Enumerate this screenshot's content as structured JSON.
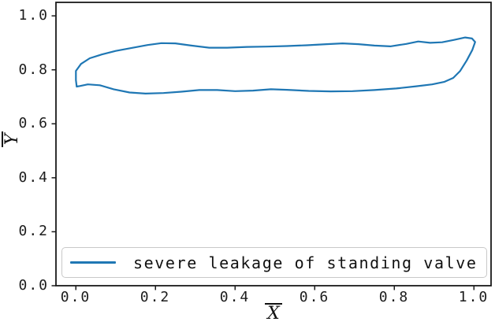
{
  "figure": {
    "background": "#ffffff"
  },
  "chart_data": {
    "type": "line",
    "title": "",
    "xlabel": "X",
    "ylabel": "Y",
    "axis_labels_overlined": true,
    "grid": false,
    "xlim": [
      -0.05,
      1.043
    ],
    "ylim": [
      0.0,
      1.05
    ],
    "x_tick_values": [
      0.0,
      0.2,
      0.4,
      0.6,
      0.8,
      1.0
    ],
    "x_tick_labels": [
      "0.0",
      "0.2",
      "0.4",
      "0.6",
      "0.8",
      "1.0"
    ],
    "y_tick_values": [
      0.0,
      0.2,
      0.4,
      0.6,
      0.8,
      1.0
    ],
    "y_tick_labels": [
      "0.0",
      "0.2",
      "0.4",
      "0.6",
      "0.8",
      "1.0"
    ],
    "legend": {
      "position": "lower center",
      "entries": [
        {
          "label": "severe leakage of standing valve",
          "color": "#1f77b4",
          "line_style": "solid"
        }
      ]
    },
    "series": [
      {
        "name": "severe leakage of standing valve",
        "color": "#1f77b4",
        "closed_loop": true,
        "points": [
          [
            0.002,
            0.738
          ],
          [
            0.0,
            0.762
          ],
          [
            0.0,
            0.796
          ],
          [
            0.013,
            0.822
          ],
          [
            0.035,
            0.843
          ],
          [
            0.065,
            0.857
          ],
          [
            0.1,
            0.87
          ],
          [
            0.14,
            0.881
          ],
          [
            0.18,
            0.892
          ],
          [
            0.215,
            0.899
          ],
          [
            0.25,
            0.898
          ],
          [
            0.29,
            0.89
          ],
          [
            0.335,
            0.882
          ],
          [
            0.38,
            0.882
          ],
          [
            0.43,
            0.885
          ],
          [
            0.48,
            0.886
          ],
          [
            0.53,
            0.888
          ],
          [
            0.58,
            0.891
          ],
          [
            0.63,
            0.895
          ],
          [
            0.67,
            0.898
          ],
          [
            0.71,
            0.895
          ],
          [
            0.75,
            0.89
          ],
          [
            0.79,
            0.887
          ],
          [
            0.83,
            0.896
          ],
          [
            0.86,
            0.905
          ],
          [
            0.89,
            0.9
          ],
          [
            0.92,
            0.902
          ],
          [
            0.95,
            0.911
          ],
          [
            0.978,
            0.92
          ],
          [
            0.995,
            0.916
          ],
          [
            1.003,
            0.903
          ],
          [
            0.996,
            0.874
          ],
          [
            0.982,
            0.835
          ],
          [
            0.965,
            0.795
          ],
          [
            0.948,
            0.77
          ],
          [
            0.925,
            0.755
          ],
          [
            0.895,
            0.746
          ],
          [
            0.855,
            0.739
          ],
          [
            0.805,
            0.731
          ],
          [
            0.75,
            0.725
          ],
          [
            0.695,
            0.721
          ],
          [
            0.64,
            0.72
          ],
          [
            0.585,
            0.722
          ],
          [
            0.53,
            0.726
          ],
          [
            0.49,
            0.728
          ],
          [
            0.445,
            0.723
          ],
          [
            0.4,
            0.721
          ],
          [
            0.355,
            0.725
          ],
          [
            0.31,
            0.725
          ],
          [
            0.265,
            0.719
          ],
          [
            0.22,
            0.714
          ],
          [
            0.175,
            0.712
          ],
          [
            0.135,
            0.716
          ],
          [
            0.095,
            0.728
          ],
          [
            0.06,
            0.743
          ],
          [
            0.03,
            0.746
          ],
          [
            0.01,
            0.74
          ]
        ]
      }
    ]
  }
}
